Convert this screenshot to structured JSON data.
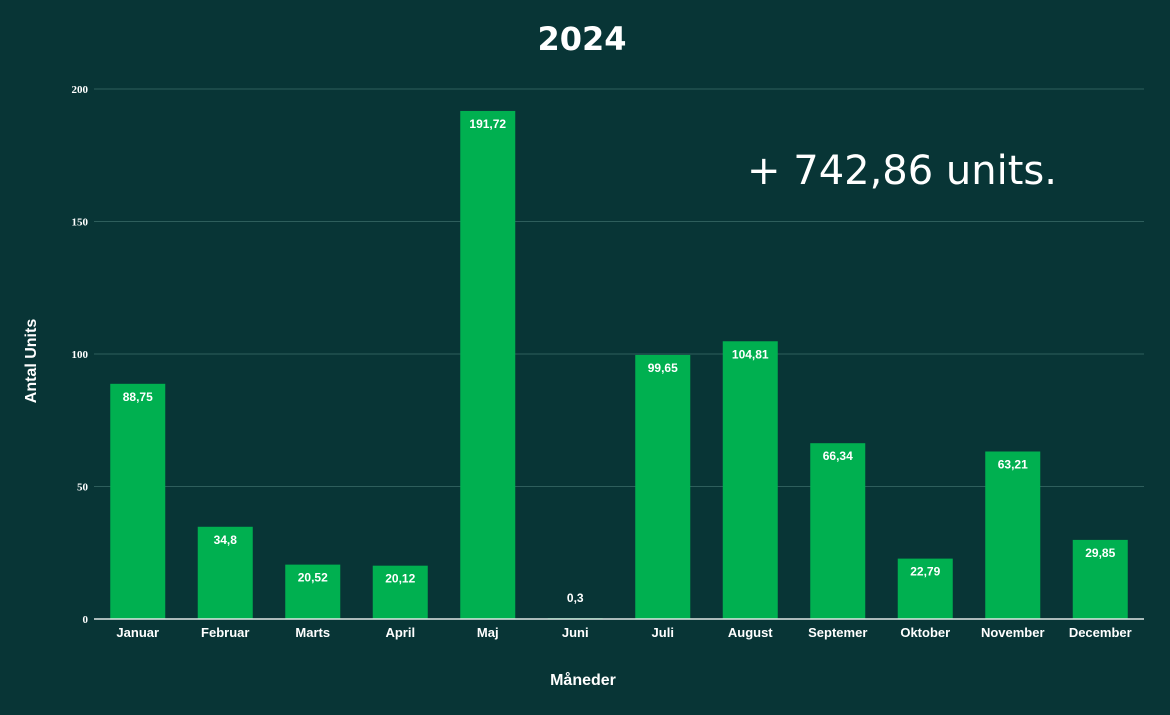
{
  "colors": {
    "background": "#083536",
    "bar": "#00b050",
    "gridline": "#2e5e5c",
    "axis": "#dfe8e6",
    "text": "#ffffff"
  },
  "chart_data": {
    "type": "bar",
    "title": "2024",
    "annotation": "+ 742,86 units.",
    "xlabel": "Måneder",
    "ylabel": "Antal Units",
    "ylim": [
      0,
      200
    ],
    "yticks": [
      "0",
      "50",
      "100",
      "150",
      "200"
    ],
    "grid": true,
    "legend": "none",
    "categories": [
      "Januar",
      "Februar",
      "Marts",
      "April",
      "Maj",
      "Juni",
      "Juli",
      "August",
      "Septemer",
      "Oktober",
      "November",
      "December"
    ],
    "values": [
      88.75,
      34.8,
      20.52,
      20.12,
      191.72,
      0.3,
      99.65,
      104.81,
      66.34,
      22.79,
      63.21,
      29.85
    ],
    "value_labels": [
      "88,75",
      "34,8",
      "20,52",
      "20,12",
      "191,72",
      "0,3",
      "99,65",
      "104,81",
      "66,34",
      "22,79",
      "63,21",
      "29,85"
    ]
  }
}
